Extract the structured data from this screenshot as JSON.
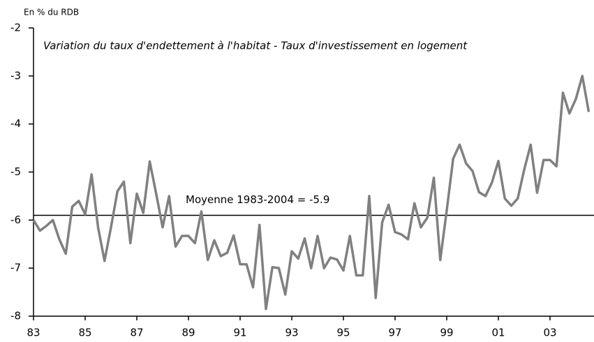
{
  "chart_data": {
    "type": "line",
    "unit_label": "En % du RDB",
    "subtitle": "Variation du taux d'endettement à l'habitat - Taux d'investissement en logement",
    "categories": [
      "83",
      null,
      null,
      null,
      null,
      null,
      null,
      null,
      "85",
      null,
      null,
      null,
      null,
      null,
      null,
      null,
      "87",
      null,
      null,
      null,
      null,
      null,
      null,
      null,
      "89",
      null,
      null,
      null,
      null,
      null,
      null,
      null,
      "91",
      null,
      null,
      null,
      null,
      null,
      null,
      null,
      "93",
      null,
      null,
      null,
      null,
      null,
      null,
      null,
      "95",
      null,
      null,
      null,
      null,
      null,
      null,
      null,
      "97",
      null,
      null,
      null,
      null,
      null,
      null,
      null,
      "99",
      null,
      null,
      null,
      null,
      null,
      null,
      null,
      "01",
      null,
      null,
      null,
      null,
      null,
      null,
      null,
      "03",
      null,
      null,
      null,
      null,
      null,
      null
    ],
    "series": [
      {
        "color": "#808080",
        "values": [
          -6.0,
          -6.22,
          -6.12,
          -6.0,
          -6.4,
          -6.7,
          -5.72,
          -5.6,
          -5.88,
          -5.05,
          -6.15,
          -6.85,
          -6.15,
          -5.4,
          -5.2,
          -6.48,
          -5.45,
          -5.85,
          -4.78,
          -5.45,
          -6.15,
          -5.5,
          -6.55,
          -6.33,
          -6.33,
          -6.48,
          -5.82,
          -6.83,
          -6.42,
          -6.75,
          -6.68,
          -6.32,
          -6.92,
          -6.92,
          -7.4,
          -6.1,
          -7.85,
          -6.98,
          -7.0,
          -7.55,
          -6.65,
          -6.8,
          -6.38,
          -7.0,
          -6.33,
          -7.0,
          -6.78,
          -6.82,
          -7.05,
          -6.33,
          -7.15,
          -7.15,
          -5.5,
          -7.62,
          -6.05,
          -5.68,
          -6.25,
          -6.3,
          -6.4,
          -5.65,
          -6.15,
          -5.95,
          -5.12,
          -6.83,
          -5.8,
          -4.72,
          -4.43,
          -4.82,
          -4.98,
          -5.42,
          -5.5,
          -5.22,
          -4.77,
          -5.55,
          -5.7,
          -5.55,
          -4.95,
          -4.43,
          -5.43,
          -4.75,
          -4.75,
          -4.88,
          -3.35,
          -3.78,
          -3.48,
          -3.0,
          -3.75
        ]
      }
    ],
    "mean": {
      "value": -5.9,
      "label": "Moyenne 1983-2004 = -5.9"
    },
    "ylim": [
      -8,
      -2
    ],
    "yticks": [
      -8,
      -7,
      -6,
      -5,
      -4,
      -3,
      -2
    ]
  }
}
